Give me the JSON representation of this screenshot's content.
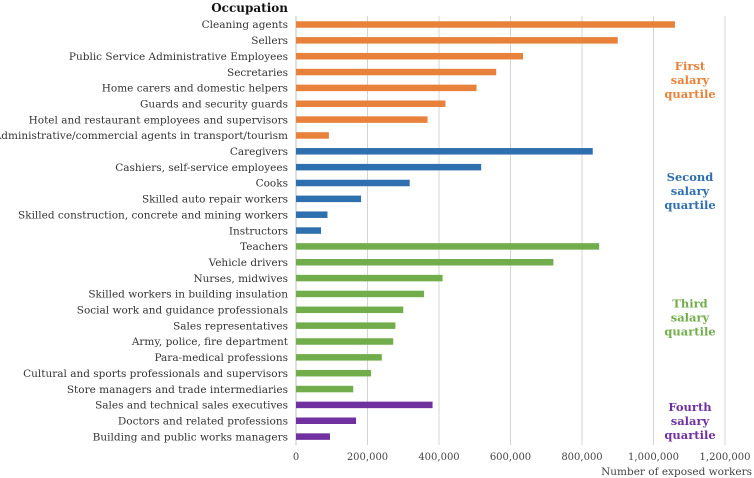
{
  "chart_data": {
    "type": "bar",
    "orientation": "horizontal",
    "category_axis_title": "Occupation",
    "xlabel": "Number of exposed workers",
    "xlim": [
      0,
      1200000
    ],
    "xticks": [
      0,
      200000,
      400000,
      600000,
      800000,
      1000000,
      1200000
    ],
    "xtick_labels": [
      "0",
      "200,000",
      "400,000",
      "600,000",
      "800,000",
      "1,000,000",
      "1,200,000"
    ],
    "grid": "vertical",
    "groups": [
      {
        "label": [
          "First",
          "salary",
          "quartile"
        ],
        "color": "#E8823A",
        "categories": [
          "Cleaning agents",
          "Sellers",
          "Public Service Administrative Employees",
          "Secretaries",
          "Home carers and domestic helpers",
          "Guards and security guards",
          "Hotel and restaurant employees and supervisors",
          "Administrative/commercial agents in transport/tourism"
        ],
        "values": [
          1060000,
          900000,
          635000,
          560000,
          505000,
          418000,
          368000,
          92000
        ]
      },
      {
        "label": [
          "Second",
          "salary",
          "quartile"
        ],
        "color": "#2E6FAF",
        "categories": [
          "Caregivers",
          "Cashiers, self-service employees",
          "Cooks",
          "Skilled auto repair workers",
          "Skilled construction, concrete and mining workers",
          "Instructors"
        ],
        "values": [
          830000,
          518000,
          318000,
          182000,
          88000,
          70000
        ]
      },
      {
        "label": [
          "Third",
          "salary",
          "quartile"
        ],
        "color": "#72AD4B",
        "categories": [
          "Teachers",
          "Vehicle drivers",
          "Nurses, midwives",
          "Skilled workers in building insulation",
          "Social work and guidance professionals",
          "Sales representatives",
          "Army, police, fire department",
          "Para-medical professions",
          "Cultural and sports professionals and supervisors",
          "Store managers and trade intermediaries"
        ],
        "values": [
          848000,
          720000,
          410000,
          358000,
          300000,
          278000,
          272000,
          240000,
          210000,
          160000
        ]
      },
      {
        "label": [
          "Fourth",
          "salary",
          "quartile"
        ],
        "color": "#7130A0",
        "categories": [
          "Sales and technical sales executives",
          "Doctors and related professions",
          "Building and public works managers"
        ],
        "values": [
          382000,
          168000,
          95000
        ]
      }
    ]
  }
}
